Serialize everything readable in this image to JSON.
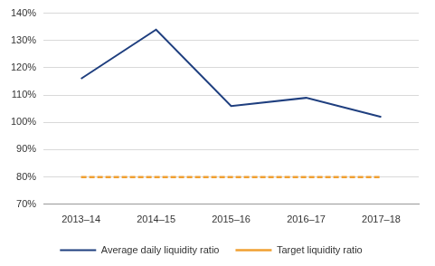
{
  "chart_data": {
    "type": "line",
    "categories": [
      "2013–14",
      "2014–15",
      "2015–16",
      "2016–17",
      "2017–18"
    ],
    "series": [
      {
        "name": "Average daily liquidity ratio",
        "color": "#1f3f7f",
        "line_style": "solid",
        "values": [
          116,
          134,
          106,
          109,
          102
        ]
      },
      {
        "name": "Target liquidity ratio",
        "color": "#f0a032",
        "line_style": "dashed",
        "values": [
          80,
          80,
          80,
          80,
          80
        ]
      }
    ],
    "ylim": [
      70,
      140
    ],
    "yticks": [
      {
        "value": 70,
        "label": "70%"
      },
      {
        "value": 80,
        "label": "80%"
      },
      {
        "value": 90,
        "label": "90%"
      },
      {
        "value": 100,
        "label": "100%"
      },
      {
        "value": 110,
        "label": "110%"
      },
      {
        "value": 120,
        "label": "120%"
      },
      {
        "value": 130,
        "label": "130%"
      },
      {
        "value": 140,
        "label": "140%"
      }
    ],
    "grid": true,
    "legend": "bottom"
  }
}
